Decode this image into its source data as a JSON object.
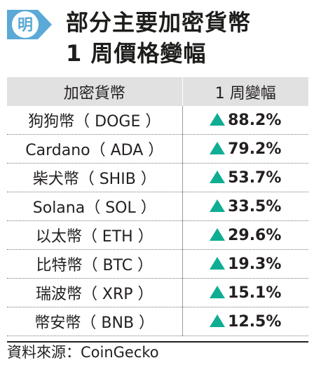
{
  "header": {
    "logo_char": "明",
    "title_line1": "部分主要加密貨幣",
    "title_line2": "1 周價格變幅",
    "colors": {
      "logo_blue": "#5aa9d6",
      "accent": "#0fae93",
      "header_bg": "#e1e1e1"
    }
  },
  "chart_data": {
    "type": "table",
    "title": "部分主要加密貨幣 1 周價格變幅",
    "columns": [
      "加密貨幣",
      "1 周變幅"
    ],
    "rows": [
      {
        "name": "狗狗幣（ DOGE ）",
        "change": "88.2%",
        "value": 88.2,
        "direction": "up"
      },
      {
        "name": "Cardano（ ADA ）",
        "change": "79.2%",
        "value": 79.2,
        "direction": "up"
      },
      {
        "name": "柴犬幣（ SHIB ）",
        "change": "53.7%",
        "value": 53.7,
        "direction": "up"
      },
      {
        "name": "Solana（ SOL ）",
        "change": "33.5%",
        "value": 33.5,
        "direction": "up"
      },
      {
        "name": "以太幣（ ETH ）",
        "change": "29.6%",
        "value": 29.6,
        "direction": "up"
      },
      {
        "name": "比特幣（ BTC ）",
        "change": "19.3%",
        "value": 19.3,
        "direction": "up"
      },
      {
        "name": "瑞波幣（ XRP ）",
        "change": "15.1%",
        "value": 15.1,
        "direction": "up"
      },
      {
        "name": "幣安幣（ BNB ）",
        "change": "12.5%",
        "value": 12.5,
        "direction": "up"
      }
    ],
    "up_icon": "triangle-up-icon"
  },
  "source": "資料來源：CoinGecko"
}
